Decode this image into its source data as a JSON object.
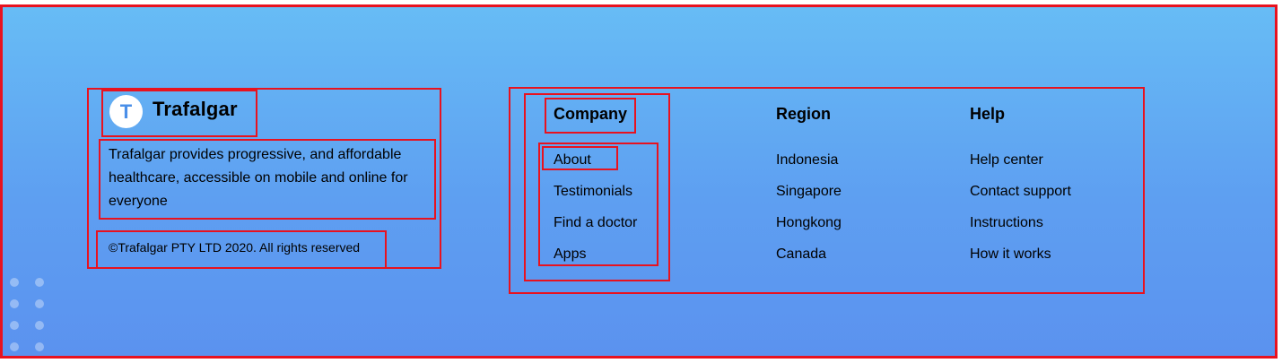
{
  "brand": {
    "logo_letter": "T",
    "name": "Trafalgar",
    "description": "Trafalgar provides progressive, and affordable healthcare, accessible on mobile and online for everyone",
    "copyright": "©Trafalgar PTY LTD 2020. All rights reserved"
  },
  "columns": {
    "company": {
      "title": "Company",
      "items": [
        "About",
        "Testimonials",
        "Find a doctor",
        "Apps"
      ]
    },
    "region": {
      "title": "Region",
      "items": [
        "Indonesia",
        "Singapore",
        "Hongkong",
        "Canada"
      ]
    },
    "help": {
      "title": "Help",
      "items": [
        "Help center",
        "Contact support",
        "Instructions",
        "How it works"
      ]
    }
  },
  "colors": {
    "gradient_top": "#67bcf5",
    "gradient_bottom": "#5b92ef",
    "annotation_red": "#e8121f"
  }
}
